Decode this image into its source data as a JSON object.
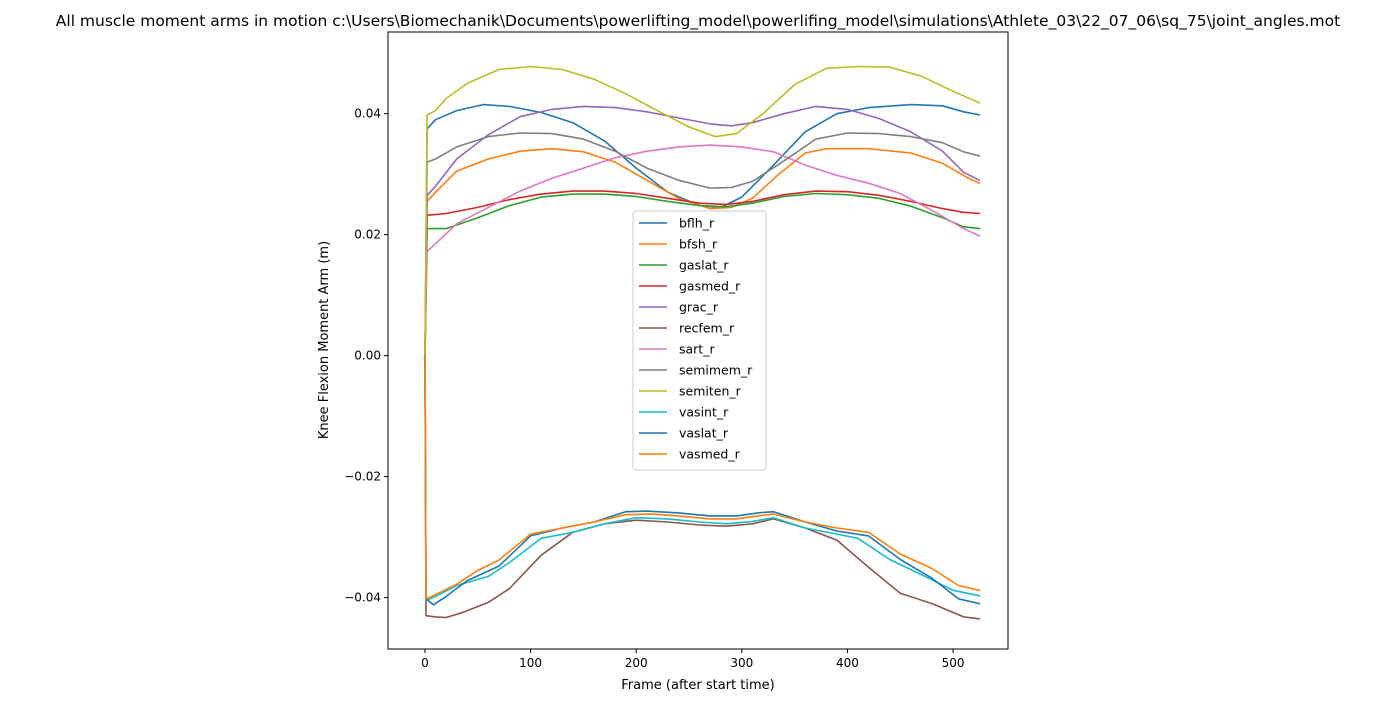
{
  "chart_data": {
    "type": "line",
    "title": "All muscle moment arms in motion c:\\Users\\Biomechanik\\Documents\\powerlifting_model\\powerlifing_model\\simulations\\Athlete_03\\22_07_06\\sq_75\\joint_angles.mot",
    "xlabel": "Frame (after start time)",
    "ylabel": "Knee Flexion Moment Arm (m)",
    "xlim": [
      -35,
      552
    ],
    "ylim": [
      -0.0485,
      0.0535
    ],
    "xticks": [
      0,
      100,
      200,
      300,
      400,
      500
    ],
    "yticks": [
      -0.04,
      -0.02,
      0.0,
      0.02,
      0.04
    ],
    "ytick_labels": [
      "−0.04",
      "−0.02",
      "0.00",
      "0.02",
      "0.04"
    ],
    "grid": false,
    "legend_position": "center",
    "series": [
      {
        "name": "bflh_r",
        "color": "#1f77b4",
        "points": [
          [
            0,
            0
          ],
          [
            2,
            0.0375
          ],
          [
            10,
            0.039
          ],
          [
            30,
            0.0405
          ],
          [
            55,
            0.0415
          ],
          [
            80,
            0.0412
          ],
          [
            110,
            0.0402
          ],
          [
            140,
            0.0385
          ],
          [
            170,
            0.0355
          ],
          [
            200,
            0.031
          ],
          [
            230,
            0.027
          ],
          [
            260,
            0.0248
          ],
          [
            280,
            0.0245
          ],
          [
            300,
            0.0262
          ],
          [
            330,
            0.0315
          ],
          [
            360,
            0.037
          ],
          [
            390,
            0.04
          ],
          [
            420,
            0.041
          ],
          [
            460,
            0.0415
          ],
          [
            490,
            0.0413
          ],
          [
            510,
            0.0403
          ],
          [
            525,
            0.0398
          ]
        ]
      },
      {
        "name": "bfsh_r",
        "color": "#ff7f0e",
        "points": [
          [
            0,
            0
          ],
          [
            2,
            0.0255
          ],
          [
            10,
            0.027
          ],
          [
            30,
            0.0305
          ],
          [
            60,
            0.0325
          ],
          [
            90,
            0.0338
          ],
          [
            120,
            0.0342
          ],
          [
            150,
            0.0337
          ],
          [
            180,
            0.032
          ],
          [
            210,
            0.029
          ],
          [
            240,
            0.026
          ],
          [
            270,
            0.0243
          ],
          [
            290,
            0.0245
          ],
          [
            310,
            0.026
          ],
          [
            335,
            0.03
          ],
          [
            360,
            0.0335
          ],
          [
            380,
            0.0342
          ],
          [
            420,
            0.0342
          ],
          [
            460,
            0.0335
          ],
          [
            490,
            0.0318
          ],
          [
            515,
            0.0293
          ],
          [
            525,
            0.0285
          ]
        ]
      },
      {
        "name": "gaslat_r",
        "color": "#2ca02c",
        "points": [
          [
            0,
            0
          ],
          [
            2,
            0.021
          ],
          [
            20,
            0.021
          ],
          [
            50,
            0.0228
          ],
          [
            80,
            0.0248
          ],
          [
            110,
            0.0262
          ],
          [
            140,
            0.0267
          ],
          [
            170,
            0.0267
          ],
          [
            200,
            0.0263
          ],
          [
            230,
            0.0255
          ],
          [
            260,
            0.0248
          ],
          [
            285,
            0.0246
          ],
          [
            310,
            0.0252
          ],
          [
            340,
            0.0263
          ],
          [
            370,
            0.0268
          ],
          [
            400,
            0.0266
          ],
          [
            430,
            0.026
          ],
          [
            460,
            0.0247
          ],
          [
            490,
            0.0228
          ],
          [
            510,
            0.0213
          ],
          [
            525,
            0.021
          ]
        ]
      },
      {
        "name": "gasmed_r",
        "color": "#d62728",
        "points": [
          [
            0,
            0
          ],
          [
            2,
            0.0232
          ],
          [
            20,
            0.0235
          ],
          [
            50,
            0.0245
          ],
          [
            80,
            0.0258
          ],
          [
            110,
            0.0267
          ],
          [
            140,
            0.0272
          ],
          [
            170,
            0.0272
          ],
          [
            200,
            0.0268
          ],
          [
            230,
            0.026
          ],
          [
            260,
            0.0252
          ],
          [
            285,
            0.025
          ],
          [
            310,
            0.0255
          ],
          [
            340,
            0.0266
          ],
          [
            370,
            0.0272
          ],
          [
            400,
            0.0271
          ],
          [
            430,
            0.0265
          ],
          [
            460,
            0.0255
          ],
          [
            490,
            0.0243
          ],
          [
            510,
            0.0237
          ],
          [
            525,
            0.0235
          ]
        ]
      },
      {
        "name": "grac_r",
        "color": "#9467bd",
        "points": [
          [
            0,
            0
          ],
          [
            2,
            0.0265
          ],
          [
            10,
            0.028
          ],
          [
            30,
            0.0325
          ],
          [
            60,
            0.0365
          ],
          [
            90,
            0.0395
          ],
          [
            120,
            0.0407
          ],
          [
            150,
            0.0412
          ],
          [
            180,
            0.041
          ],
          [
            210,
            0.0403
          ],
          [
            240,
            0.0393
          ],
          [
            270,
            0.0383
          ],
          [
            290,
            0.038
          ],
          [
            310,
            0.0385
          ],
          [
            340,
            0.04
          ],
          [
            370,
            0.0412
          ],
          [
            400,
            0.0407
          ],
          [
            430,
            0.0392
          ],
          [
            460,
            0.037
          ],
          [
            490,
            0.0338
          ],
          [
            510,
            0.0303
          ],
          [
            525,
            0.029
          ]
        ]
      },
      {
        "name": "recfem_r",
        "color": "#8c564b",
        "points": [
          [
            0,
            0
          ],
          [
            1,
            -0.043
          ],
          [
            10,
            -0.0432
          ],
          [
            20,
            -0.0433
          ],
          [
            35,
            -0.0425
          ],
          [
            60,
            -0.0408
          ],
          [
            80,
            -0.0385
          ],
          [
            110,
            -0.033
          ],
          [
            140,
            -0.0292
          ],
          [
            170,
            -0.0278
          ],
          [
            200,
            -0.0272
          ],
          [
            230,
            -0.0275
          ],
          [
            260,
            -0.028
          ],
          [
            285,
            -0.0282
          ],
          [
            310,
            -0.0278
          ],
          [
            330,
            -0.027
          ],
          [
            360,
            -0.0285
          ],
          [
            390,
            -0.0305
          ],
          [
            420,
            -0.035
          ],
          [
            450,
            -0.0393
          ],
          [
            480,
            -0.041
          ],
          [
            510,
            -0.0432
          ],
          [
            525,
            -0.0435
          ]
        ]
      },
      {
        "name": "sart_r",
        "color": "#e377c2",
        "points": [
          [
            0,
            0
          ],
          [
            2,
            0.0172
          ],
          [
            10,
            0.0185
          ],
          [
            30,
            0.0218
          ],
          [
            60,
            0.0245
          ],
          [
            90,
            0.0272
          ],
          [
            120,
            0.0293
          ],
          [
            150,
            0.031
          ],
          [
            180,
            0.0327
          ],
          [
            210,
            0.0338
          ],
          [
            240,
            0.0345
          ],
          [
            270,
            0.0348
          ],
          [
            300,
            0.0345
          ],
          [
            330,
            0.0337
          ],
          [
            360,
            0.0315
          ],
          [
            390,
            0.0298
          ],
          [
            420,
            0.0285
          ],
          [
            450,
            0.0268
          ],
          [
            480,
            0.024
          ],
          [
            510,
            0.021
          ],
          [
            525,
            0.0198
          ]
        ]
      },
      {
        "name": "semimem_r",
        "color": "#7f7f7f",
        "points": [
          [
            0,
            0
          ],
          [
            2,
            0.032
          ],
          [
            10,
            0.0325
          ],
          [
            30,
            0.0345
          ],
          [
            60,
            0.0362
          ],
          [
            90,
            0.0368
          ],
          [
            120,
            0.0367
          ],
          [
            150,
            0.0358
          ],
          [
            180,
            0.0338
          ],
          [
            210,
            0.031
          ],
          [
            240,
            0.029
          ],
          [
            270,
            0.0277
          ],
          [
            290,
            0.0278
          ],
          [
            310,
            0.0288
          ],
          [
            340,
            0.0322
          ],
          [
            370,
            0.0358
          ],
          [
            400,
            0.0368
          ],
          [
            430,
            0.0367
          ],
          [
            460,
            0.0362
          ],
          [
            490,
            0.0352
          ],
          [
            510,
            0.0337
          ],
          [
            525,
            0.033
          ]
        ]
      },
      {
        "name": "semiten_r",
        "color": "#bcbd22",
        "points": [
          [
            0,
            0
          ],
          [
            2,
            0.0398
          ],
          [
            10,
            0.0405
          ],
          [
            20,
            0.0425
          ],
          [
            40,
            0.045
          ],
          [
            70,
            0.0473
          ],
          [
            100,
            0.0478
          ],
          [
            130,
            0.0473
          ],
          [
            160,
            0.0457
          ],
          [
            190,
            0.0433
          ],
          [
            220,
            0.0405
          ],
          [
            250,
            0.0378
          ],
          [
            275,
            0.0362
          ],
          [
            295,
            0.0367
          ],
          [
            320,
            0.04
          ],
          [
            350,
            0.0448
          ],
          [
            380,
            0.0475
          ],
          [
            410,
            0.0478
          ],
          [
            440,
            0.0477
          ],
          [
            470,
            0.0462
          ],
          [
            500,
            0.0437
          ],
          [
            525,
            0.0418
          ]
        ]
      },
      {
        "name": "vasint_r",
        "color": "#17becf",
        "points": [
          [
            0,
            0
          ],
          [
            1,
            -0.0405
          ],
          [
            10,
            -0.0398
          ],
          [
            30,
            -0.038
          ],
          [
            60,
            -0.0365
          ],
          [
            80,
            -0.0342
          ],
          [
            110,
            -0.0302
          ],
          [
            140,
            -0.0292
          ],
          [
            170,
            -0.0278
          ],
          [
            200,
            -0.0268
          ],
          [
            230,
            -0.027
          ],
          [
            260,
            -0.0275
          ],
          [
            285,
            -0.0278
          ],
          [
            310,
            -0.0274
          ],
          [
            330,
            -0.0268
          ],
          [
            360,
            -0.0285
          ],
          [
            390,
            -0.0295
          ],
          [
            410,
            -0.0302
          ],
          [
            440,
            -0.0337
          ],
          [
            470,
            -0.0362
          ],
          [
            500,
            -0.0388
          ],
          [
            525,
            -0.0397
          ]
        ]
      },
      {
        "name": "vaslat_r",
        "color": "#1f77b4",
        "points": [
          [
            0,
            0
          ],
          [
            1,
            -0.0402
          ],
          [
            8,
            -0.0412
          ],
          [
            20,
            -0.0398
          ],
          [
            40,
            -0.0372
          ],
          [
            70,
            -0.0348
          ],
          [
            100,
            -0.0298
          ],
          [
            130,
            -0.0285
          ],
          [
            160,
            -0.0275
          ],
          [
            190,
            -0.0258
          ],
          [
            210,
            -0.0257
          ],
          [
            240,
            -0.026
          ],
          [
            270,
            -0.0265
          ],
          [
            295,
            -0.0265
          ],
          [
            315,
            -0.026
          ],
          [
            330,
            -0.0258
          ],
          [
            360,
            -0.0275
          ],
          [
            390,
            -0.029
          ],
          [
            420,
            -0.0298
          ],
          [
            450,
            -0.0337
          ],
          [
            480,
            -0.0368
          ],
          [
            505,
            -0.0402
          ],
          [
            525,
            -0.041
          ]
        ]
      },
      {
        "name": "vasmed_r",
        "color": "#ff7f0e",
        "points": [
          [
            0,
            0
          ],
          [
            1,
            -0.0402
          ],
          [
            10,
            -0.0395
          ],
          [
            30,
            -0.0378
          ],
          [
            50,
            -0.0355
          ],
          [
            70,
            -0.0338
          ],
          [
            100,
            -0.0295
          ],
          [
            130,
            -0.0285
          ],
          [
            160,
            -0.0275
          ],
          [
            190,
            -0.0263
          ],
          [
            215,
            -0.0262
          ],
          [
            240,
            -0.0265
          ],
          [
            270,
            -0.027
          ],
          [
            295,
            -0.027
          ],
          [
            315,
            -0.0265
          ],
          [
            330,
            -0.0262
          ],
          [
            360,
            -0.0275
          ],
          [
            390,
            -0.0285
          ],
          [
            420,
            -0.0292
          ],
          [
            450,
            -0.0328
          ],
          [
            480,
            -0.0352
          ],
          [
            505,
            -0.038
          ],
          [
            525,
            -0.0388
          ]
        ]
      }
    ]
  }
}
